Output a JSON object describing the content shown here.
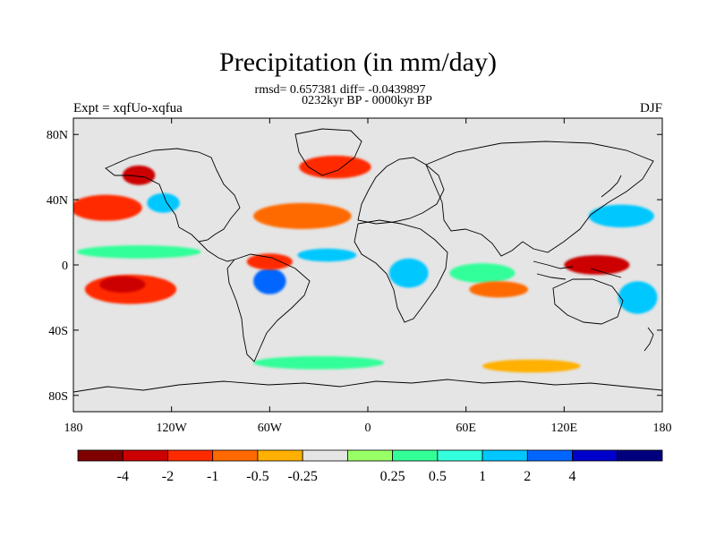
{
  "title": "Precipitation (in mm/day)",
  "stats": "rmsd= 0.657381 diff= -0.0439897",
  "period": "0232kyr BP - 0000kyr BP",
  "left_label": "Expt = xqfUo-xqfua",
  "right_label": "DJF",
  "map": {
    "lon_ticks": [
      {
        "value": -180,
        "label": "180"
      },
      {
        "value": -120,
        "label": "120W"
      },
      {
        "value": -60,
        "label": "60W"
      },
      {
        "value": 0,
        "label": "0"
      },
      {
        "value": 60,
        "label": "60E"
      },
      {
        "value": 120,
        "label": "120E"
      },
      {
        "value": 180,
        "label": "180"
      }
    ],
    "lat_ticks": [
      {
        "value": 80,
        "label": "80N"
      },
      {
        "value": 40,
        "label": "40N"
      },
      {
        "value": 0,
        "label": "0"
      },
      {
        "value": -40,
        "label": "40S"
      },
      {
        "value": -80,
        "label": "80S"
      }
    ],
    "ocean_color": "#e5e5e5",
    "features": [
      {
        "name": "north-pacific-dry",
        "color": "#ff2a00",
        "lon": -160,
        "lat": 35,
        "rx": 22,
        "ry": 8
      },
      {
        "name": "north-pacific-wet",
        "color": "#00c8ff",
        "lon": -125,
        "lat": 38,
        "rx": 10,
        "ry": 6
      },
      {
        "name": "alaska-dry",
        "color": "#cc0000",
        "lon": -140,
        "lat": 55,
        "rx": 10,
        "ry": 6
      },
      {
        "name": "equatorial-pacific-wet",
        "color": "#33ff99",
        "lon": -140,
        "lat": 8,
        "rx": 38,
        "ry": 4
      },
      {
        "name": "south-pacific-dry",
        "color": "#ff2a00",
        "lon": -145,
        "lat": -15,
        "rx": 28,
        "ry": 9
      },
      {
        "name": "south-pacific-dry-core",
        "color": "#cc0000",
        "lon": -150,
        "lat": -12,
        "rx": 14,
        "ry": 5
      },
      {
        "name": "amazon-wet",
        "color": "#0066ff",
        "lon": -60,
        "lat": -10,
        "rx": 10,
        "ry": 8
      },
      {
        "name": "amazon-dry",
        "color": "#ff2a00",
        "lon": -60,
        "lat": 2,
        "rx": 14,
        "ry": 5
      },
      {
        "name": "atlantic-dry",
        "color": "#ff6a00",
        "lon": -40,
        "lat": 30,
        "rx": 30,
        "ry": 8
      },
      {
        "name": "north-atlantic-dry",
        "color": "#ff2a00",
        "lon": -20,
        "lat": 60,
        "rx": 22,
        "ry": 7
      },
      {
        "name": "atlantic-itcz-wet",
        "color": "#00c8ff",
        "lon": -25,
        "lat": 6,
        "rx": 18,
        "ry": 4
      },
      {
        "name": "africa-wet",
        "color": "#00c8ff",
        "lon": 25,
        "lat": -5,
        "rx": 12,
        "ry": 9
      },
      {
        "name": "indian-ocean-wet",
        "color": "#33ff99",
        "lon": 70,
        "lat": -5,
        "rx": 20,
        "ry": 6
      },
      {
        "name": "indian-ocean-dry",
        "color": "#ff6a00",
        "lon": 80,
        "lat": -15,
        "rx": 18,
        "ry": 5
      },
      {
        "name": "maritime-continent-dry",
        "color": "#cc0000",
        "lon": 140,
        "lat": 0,
        "rx": 20,
        "ry": 6
      },
      {
        "name": "west-pacific-wet",
        "color": "#00c8ff",
        "lon": 155,
        "lat": 30,
        "rx": 20,
        "ry": 7
      },
      {
        "name": "south-west-pacific-wet",
        "color": "#00c8ff",
        "lon": 165,
        "lat": -20,
        "rx": 12,
        "ry": 10
      },
      {
        "name": "southern-ocean-wet",
        "color": "#33ff99",
        "lon": -30,
        "lat": -60,
        "rx": 40,
        "ry": 4
      },
      {
        "name": "southern-ocean-dry",
        "color": "#ffb000",
        "lon": 100,
        "lat": -62,
        "rx": 30,
        "ry": 4
      }
    ]
  },
  "colorbar": {
    "colors": [
      "#800000",
      "#cc0000",
      "#ff2a00",
      "#ff6a00",
      "#ffb000",
      "#e5e5e5",
      "#99ff66",
      "#33ff99",
      "#33ffdd",
      "#00c8ff",
      "#0066ff",
      "#0000cc",
      "#00007f"
    ],
    "labels": [
      "-4",
      "-2",
      "-1",
      "-0.5",
      "-0.25",
      "0.25",
      "0.5",
      "1",
      "2",
      "4"
    ]
  }
}
